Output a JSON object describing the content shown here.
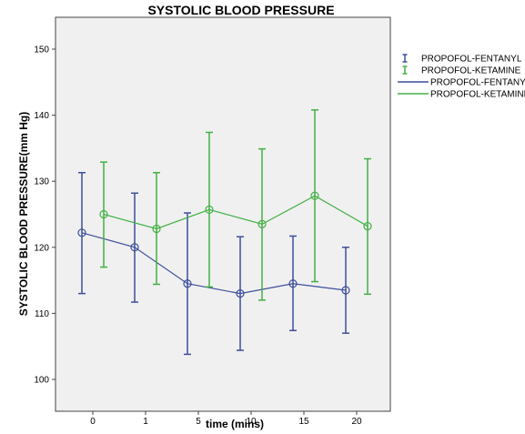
{
  "chart_data": {
    "type": "line",
    "title": "SYSTOLIC BLOOD PRESSURE",
    "xlabel": "time (mins)",
    "ylabel": "SYSTOLIC BLOOD PRESSURE(mm Hg)",
    "categories": [
      "0",
      "1",
      "5",
      "10",
      "15",
      "20"
    ],
    "ylim": [
      100,
      150
    ],
    "yticks": [
      100,
      110,
      120,
      130,
      140,
      150
    ],
    "grid": false,
    "legend_position": "top-right",
    "colors": {
      "fentanyl": "#3d4f9a",
      "ketamine": "#42b045",
      "plot_bg": "#f0f0f0"
    },
    "series": [
      {
        "name": "PROPOFOL-FENTANYL",
        "mean": [
          122.2,
          120.0,
          114.5,
          113.0,
          114.5,
          113.5
        ],
        "upper": [
          131.3,
          128.2,
          125.2,
          121.6,
          121.7,
          120.0
        ],
        "lower": [
          113.0,
          111.7,
          103.8,
          104.4,
          107.4,
          107.0
        ]
      },
      {
        "name": "PROPOFOL-KETAMINE",
        "mean": [
          125.0,
          122.8,
          125.7,
          123.5,
          127.8,
          123.2
        ],
        "upper": [
          132.9,
          131.3,
          137.4,
          134.9,
          140.8,
          133.4
        ],
        "lower": [
          117.0,
          114.4,
          114.0,
          112.0,
          114.8,
          112.9
        ]
      }
    ],
    "legend": [
      {
        "label": "PROPOFOL-FENTANYL",
        "kind": "error-bar",
        "series": 0
      },
      {
        "label": "PROPOFOL-KETAMINE",
        "kind": "error-bar",
        "series": 1
      },
      {
        "label": "PROPOFOL-FENTANYL",
        "kind": "line",
        "series": 0
      },
      {
        "label": "PROPOFOL-KETAMINE",
        "kind": "line",
        "series": 1
      }
    ]
  }
}
